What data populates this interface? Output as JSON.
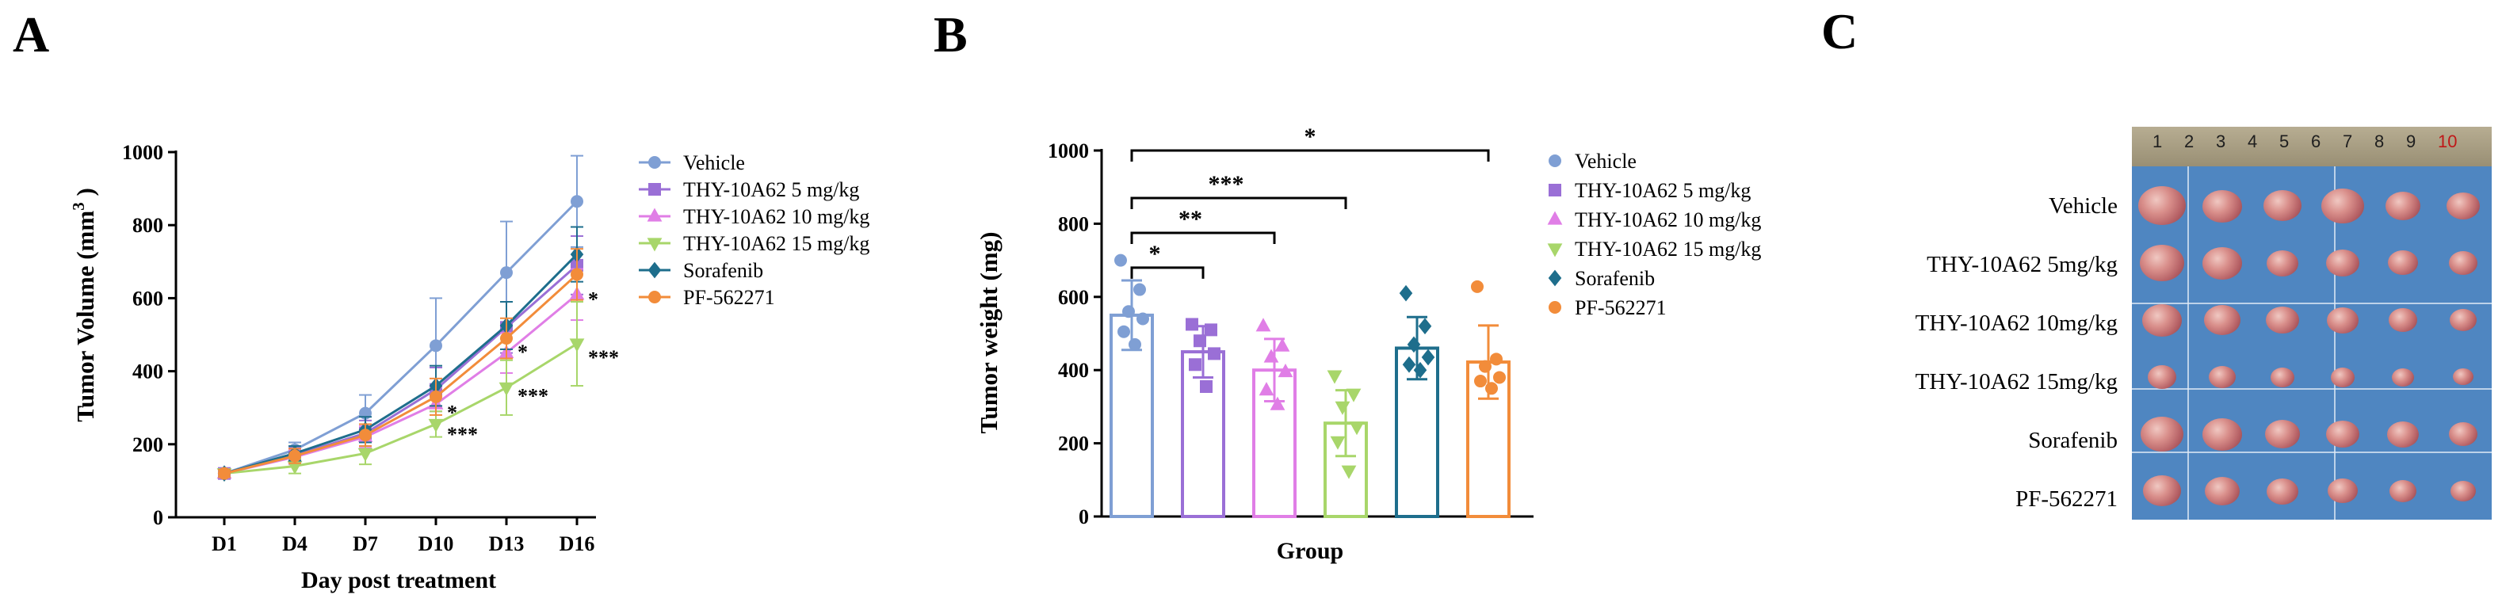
{
  "panels": {
    "a": {
      "letter": "A",
      "chart_data": {
        "type": "line",
        "title": "",
        "xlabel": "Day post treatment",
        "ylabel_main": "Tumor  Volume (mm",
        "ylabel_sup": "3",
        "ylabel_close": " )",
        "categories": [
          "D1",
          "D4",
          "D7",
          "D10",
          "D13",
          "D16"
        ],
        "ylim": [
          0,
          1000
        ],
        "yticks": [
          "0",
          "200",
          "400",
          "600",
          "800",
          "1000"
        ],
        "series": [
          {
            "name": "Vehicle",
            "color": "#7f9fd4",
            "marker": "circle",
            "values": [
              120,
              185,
              285,
              470,
              670,
              865
            ],
            "errors": [
              10,
              20,
              50,
              130,
              140,
              125
            ]
          },
          {
            "name": "THY-10A62 5 mg/kg",
            "color": "#9a6fd6",
            "marker": "square",
            "values": [
              120,
              170,
              230,
              350,
              520,
              690
            ],
            "errors": [
              10,
              20,
              35,
              60,
              70,
              80
            ]
          },
          {
            "name": "THY-10A62 10 mg/kg",
            "color": "#e07ee6",
            "marker": "triangle-up",
            "values": [
              120,
              165,
              220,
              310,
              450,
              610
            ],
            "errors": [
              10,
              20,
              30,
              45,
              55,
              70
            ]
          },
          {
            "name": "THY-10A62 15 mg/kg",
            "color": "#a8d66a",
            "marker": "triangle-down",
            "values": [
              120,
              140,
              175,
              255,
              355,
              475
            ],
            "errors": [
              10,
              20,
              30,
              35,
              75,
              115
            ]
          },
          {
            "name": "Sorafenib",
            "color": "#1e6e8c",
            "marker": "diamond",
            "values": [
              120,
              175,
              240,
              360,
              525,
              720
            ],
            "errors": [
              10,
              20,
              35,
              55,
              65,
              75
            ]
          },
          {
            "name": "PF-562271",
            "color": "#f28c3a",
            "marker": "circle",
            "values": [
              120,
              168,
              225,
              330,
              490,
              665
            ],
            "errors": [
              10,
              20,
              30,
              50,
              55,
              70
            ]
          }
        ],
        "annotations": [
          {
            "text": "*",
            "x": "D16",
            "y": 600
          },
          {
            "text": "***",
            "x": "D16",
            "y": 440
          },
          {
            "text": "*",
            "x": "D13",
            "y": 455
          },
          {
            "text": "***",
            "x": "D13",
            "y": 335
          },
          {
            "text": "*",
            "x": "D10",
            "y": 290
          },
          {
            "text": "***",
            "x": "D10",
            "y": 230
          }
        ]
      }
    },
    "b": {
      "letter": "B",
      "chart_data": {
        "type": "bar",
        "title": "",
        "xlabel": "Group",
        "ylabel": "Tumor weight (mg)",
        "ylim": [
          0,
          1000
        ],
        "yticks": [
          "0",
          "200",
          "400",
          "600",
          "800",
          "1000"
        ],
        "series": [
          {
            "name": "Vehicle",
            "color": "#7f9fd4",
            "marker": "circle",
            "value": 550,
            "error": 95,
            "points": [
              700,
              620,
              560,
              540,
              505,
              470
            ]
          },
          {
            "name": "THY-10A62 5 mg/kg",
            "color": "#9a6fd6",
            "marker": "square",
            "value": 450,
            "error": 70,
            "points": [
              525,
              510,
              480,
              445,
              415,
              355
            ]
          },
          {
            "name": "THY-10A62 10 mg/kg",
            "color": "#e07ee6",
            "marker": "triangle-up",
            "value": 400,
            "error": 85,
            "points": [
              520,
              465,
              435,
              395,
              345,
              305
            ]
          },
          {
            "name": "THY-10A62 15 mg/kg",
            "color": "#a8d66a",
            "marker": "triangle-down",
            "value": 255,
            "error": 90,
            "points": [
              385,
              335,
              300,
              245,
              205,
              125
            ]
          },
          {
            "name": "Sorafenib",
            "color": "#1e6e8c",
            "marker": "diamond",
            "value": 460,
            "error": 85,
            "points": [
              610,
              520,
              470,
              435,
              415,
              400
            ]
          },
          {
            "name": "PF-562271",
            "color": "#f28c3a",
            "marker": "circle",
            "value": 422,
            "error": 100,
            "points": [
              628,
              430,
              410,
              380,
              370,
              350
            ]
          }
        ],
        "significance": [
          {
            "from": 0,
            "to": 1,
            "level": 680,
            "label": "*"
          },
          {
            "from": 0,
            "to": 2,
            "level": 775,
            "label": "**"
          },
          {
            "from": 0,
            "to": 3,
            "level": 870,
            "label": "***"
          },
          {
            "from": 0,
            "to": 5,
            "level": 1000,
            "label": "*"
          }
        ]
      }
    },
    "c": {
      "letter": "C",
      "ruler_numbers": [
        "1",
        "2",
        "3",
        "4",
        "5",
        "6",
        "7",
        "8",
        "9",
        "10"
      ],
      "group_labels": [
        "Vehicle",
        "THY-10A62    5mg/kg",
        "THY-10A62  10mg/kg",
        "THY-10A62  15mg/kg",
        "Sorafenib",
        "PF-562271"
      ]
    }
  }
}
